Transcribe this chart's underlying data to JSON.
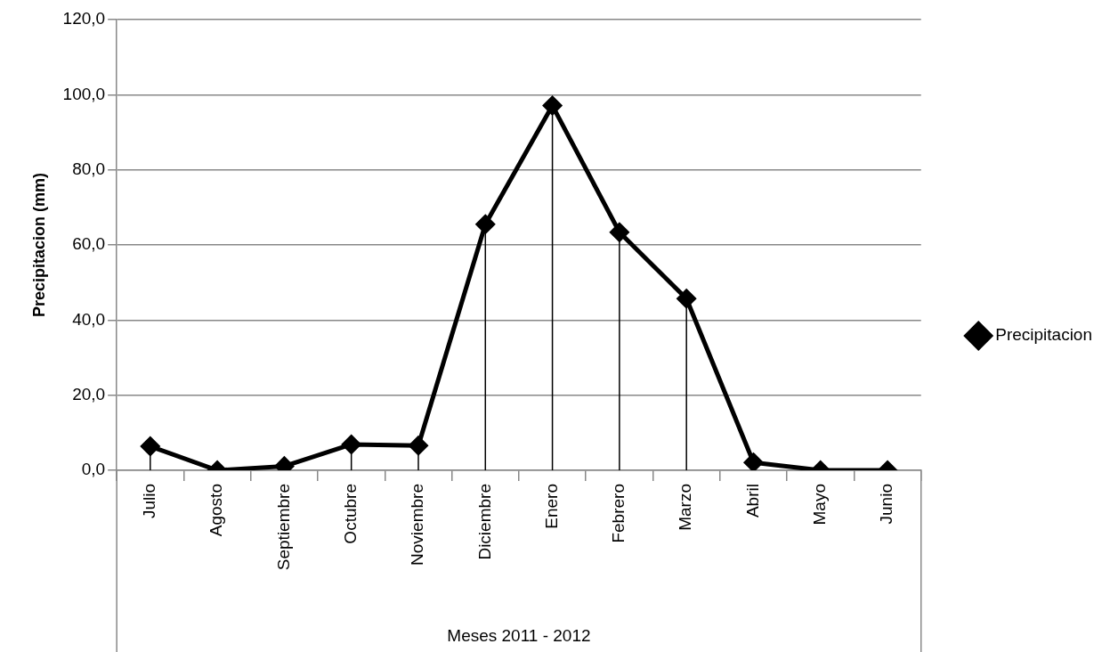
{
  "chart_data": {
    "type": "line",
    "xlabel": "Meses 2011 - 2012",
    "ylabel": "Precipitacion (mm)",
    "categories": [
      "Julio",
      "Agosto",
      "Septiembre",
      "Octubre",
      "Noviembre",
      "Diciembre",
      "Enero",
      "Febrero",
      "Marzo",
      "Abril",
      "Mayo",
      "Junio"
    ],
    "series": [
      {
        "name": "Precipitacion",
        "color": "#000000",
        "values": [
          6.4,
          0,
          1.1,
          6.9,
          6.6,
          65.5,
          97.1,
          63.4,
          45.7,
          2.1,
          0,
          0
        ],
        "errors": [
          [
            6.4,
            0
          ],
          null,
          null,
          [
            6.9,
            0
          ],
          [
            6.6,
            0
          ],
          [
            65.5,
            0
          ],
          [
            97.1,
            0
          ],
          [
            63.4,
            0
          ],
          [
            45.7,
            0
          ],
          null,
          null,
          null
        ]
      }
    ],
    "ylim": [
      0,
      120
    ],
    "yticks": [
      {
        "value": 0,
        "label": "0,0"
      },
      {
        "value": 20,
        "label": "20,0"
      },
      {
        "value": 40,
        "label": "40,0"
      },
      {
        "value": 60,
        "label": "60,0"
      },
      {
        "value": 80,
        "label": "80,0"
      },
      {
        "value": 100,
        "label": "100,0"
      },
      {
        "value": 120,
        "label": "120,0"
      }
    ],
    "grid": "y",
    "legend": "right",
    "marker": "diamond",
    "line_style": "solid"
  }
}
